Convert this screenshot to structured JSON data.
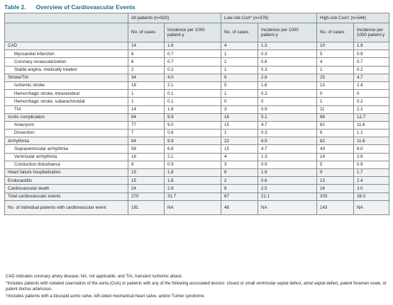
{
  "table": {
    "label": "Table 2.",
    "title": "Overview of Cardiovascular Events",
    "groups": [
      {
        "name": "All patients (n=920)"
      },
      {
        "name": "Low-risk CoA* (n=376)"
      },
      {
        "name": "High-risk CoA† (n=544)"
      }
    ],
    "subheaders": [
      "No. of cases",
      "Incidence per 1000 patient-y",
      "No. of cases",
      "Incidence per 1000 patient-y",
      "No. of cases",
      "Incidence per 1000 patient-y"
    ],
    "rows": [
      {
        "label": "CAD",
        "indent": false,
        "cells": [
          "14",
          "1.6",
          "4",
          "1.3",
          "10",
          "1.9"
        ]
      },
      {
        "label": "Myocardial infarction",
        "indent": true,
        "cells": [
          "6",
          "0.7",
          "1",
          "0.3",
          "5",
          "0.9"
        ]
      },
      {
        "label": "Coronary revascularization",
        "indent": true,
        "cells": [
          "6",
          "0.7",
          "2",
          "0.6",
          "4",
          "0.7"
        ]
      },
      {
        "label": "Stable angina, medically treated",
        "indent": true,
        "cells": [
          "2",
          "0.2",
          "1",
          "0.3",
          "1",
          "0.2"
        ]
      },
      {
        "label": "Stroke/TIA",
        "indent": false,
        "cells": [
          "34",
          "4.0",
          "9",
          "2.8",
          "25",
          "4.7"
        ]
      },
      {
        "label": "Ischemic stroke",
        "indent": true,
        "cells": [
          "18",
          "2.1",
          "5",
          "1.6",
          "13",
          "2.4"
        ]
      },
      {
        "label": "Hemorrhagic stroke, intracerebral",
        "indent": true,
        "cells": [
          "1",
          "0.1",
          "1",
          "0.3",
          "0",
          "0"
        ]
      },
      {
        "label": "Hemorrhagic stroke, subarachnoidal",
        "indent": true,
        "cells": [
          "1",
          "0.1",
          "0",
          "0",
          "1",
          "0.2"
        ]
      },
      {
        "label": "TIA",
        "indent": true,
        "cells": [
          "14",
          "1.6",
          "3",
          "0.9",
          "11",
          "2.1"
        ]
      },
      {
        "label": "Aortic complication",
        "indent": false,
        "cells": [
          "84",
          "9.9",
          "16",
          "5.1",
          "68",
          "12.7"
        ]
      },
      {
        "label": "Aneurysm",
        "indent": true,
        "cells": [
          "77",
          "9.0",
          "15",
          "4.7",
          "62",
          "11.6"
        ]
      },
      {
        "label": "Dissection",
        "indent": true,
        "cells": [
          "7",
          "0.8",
          "1",
          "0.3",
          "6",
          "1.1"
        ]
      },
      {
        "label": "Arrhythmia",
        "indent": false,
        "cells": [
          "84",
          "9.9",
          "22",
          "6.9",
          "62",
          "11.6"
        ]
      },
      {
        "label": "Supraventricular arrhythmia",
        "indent": true,
        "cells": [
          "58",
          "6.8",
          "15",
          "4.7",
          "43",
          "8.0"
        ]
      },
      {
        "label": "Ventricular arrhythmia",
        "indent": true,
        "cells": [
          "18",
          "2.1",
          "4",
          "1.3",
          "14",
          "2.6"
        ]
      },
      {
        "label": "Conduction disturbance",
        "indent": true,
        "cells": [
          "8",
          "0.9",
          "3",
          "0.9",
          "5",
          "0.9"
        ]
      },
      {
        "label": "Heart failure hospitalization",
        "indent": false,
        "cells": [
          "15",
          "1.8",
          "6",
          "1.9",
          "9",
          "1.7"
        ]
      },
      {
        "label": "Endocarditis",
        "indent": false,
        "cells": [
          "15",
          "1.8",
          "2",
          "0.6",
          "13",
          "2.4"
        ]
      },
      {
        "label": "Cardiovascular death",
        "indent": false,
        "cells": [
          "24",
          "2.8",
          "8",
          "2.5",
          "16",
          "3.0"
        ]
      },
      {
        "label": "Total cardiovascular events",
        "indent": false,
        "cells": [
          "270",
          "31.7",
          "67",
          "21.1",
          "203",
          "38.0"
        ]
      },
      {
        "label": "No. of individual patients with cardiovascular event",
        "indent": false,
        "cells": [
          "191",
          "NA",
          "48",
          "NA",
          "143",
          "NA"
        ]
      }
    ]
  },
  "footnotes": [
    "CAD indicates coronary artery disease; NA, not applicable; and TIA, transient ischemic attack.",
    "*Includes patients with isolated coarctation of the aorta (CoA) or patients with any of the following associated lesions: closed or small ventricular septal defect, atrial septal defect, patent foramen ovale, or patent ductus arteriosus.",
    "†Includes patients with a bicuspid aortic valve, left-sided mechanical heart valve, and/or Turner syndrome."
  ],
  "colors": {
    "title": "#1f6f8b",
    "header_bg": "#dfe6ea",
    "band_bg": "#eef2f4",
    "border": "#8a8a8a"
  }
}
